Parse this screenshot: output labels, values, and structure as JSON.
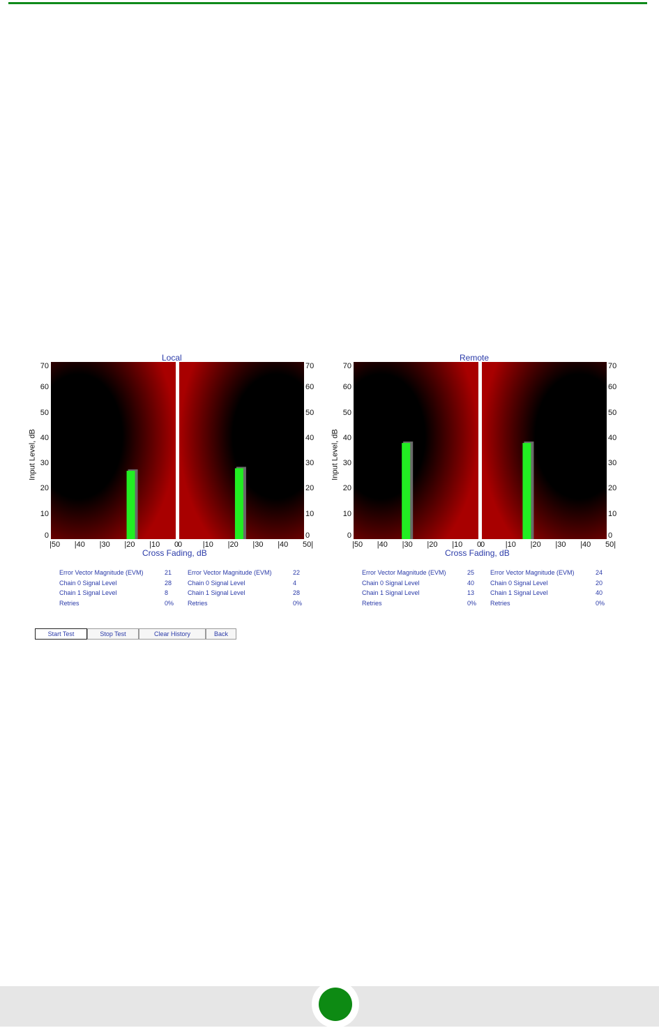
{
  "colors": {
    "top_rule": "#0f8a1a",
    "title_text": "#2a3aa8",
    "bar_green": "#22ee22",
    "bar_shadow": "#6a6a6a",
    "field_red": "#a80000",
    "field_dark": "#000000",
    "page_dot": "#0d8a13"
  },
  "panels": {
    "local": {
      "title": "Local",
      "y_axis_label": "Input Level, dB",
      "x_axis_label": "Cross Fading, dB",
      "y_ticks": [
        "70",
        "60",
        "50",
        "40",
        "30",
        "20",
        "10",
        "0"
      ],
      "left_x_ticks": [
        "|50",
        "|40",
        "|30",
        "|20",
        "|10",
        "0"
      ],
      "right_x_ticks": [
        "0",
        "|10",
        "|20",
        "|30",
        "|40",
        "50|"
      ],
      "stats_left": [
        {
          "label": "Error Vector Magnitude (EVM)",
          "value": "21"
        },
        {
          "label": "Chain 0 Signal Level",
          "value": "28"
        },
        {
          "label": "Chain 1 Signal Level",
          "value": "8"
        },
        {
          "label": "Retries",
          "value": "0%"
        }
      ],
      "stats_right": [
        {
          "label": "Error Vector Magnitude (EVM)",
          "value": "22"
        },
        {
          "label": "Chain 0 Signal Level",
          "value": "4"
        },
        {
          "label": "Chain 1 Signal Level",
          "value": "28"
        },
        {
          "label": "Retries",
          "value": "0%"
        }
      ]
    },
    "remote": {
      "title": "Remote",
      "y_axis_label": "Input Level, dB",
      "x_axis_label": "Cross Fading, dB",
      "y_ticks": [
        "70",
        "60",
        "50",
        "40",
        "30",
        "20",
        "10",
        "0"
      ],
      "left_x_ticks": [
        "|50",
        "|40",
        "|30",
        "|20",
        "|10",
        "0"
      ],
      "right_x_ticks": [
        "0",
        "|10",
        "|20",
        "|30",
        "|40",
        "50|"
      ],
      "stats_left": [
        {
          "label": "Error Vector Magnitude (EVM)",
          "value": "25"
        },
        {
          "label": "Chain 0 Signal Level",
          "value": "40"
        },
        {
          "label": "Chain 1 Signal Level",
          "value": "13"
        },
        {
          "label": "Retries",
          "value": "0%"
        }
      ],
      "stats_right": [
        {
          "label": "Error Vector Magnitude (EVM)",
          "value": "24"
        },
        {
          "label": "Chain 0 Signal Level",
          "value": "20"
        },
        {
          "label": "Chain 1 Signal Level",
          "value": "40"
        },
        {
          "label": "Retries",
          "value": "0%"
        }
      ]
    }
  },
  "buttons": {
    "start": "Start Test",
    "stop": "Stop Test",
    "clear": "Clear History",
    "back": "Back"
  },
  "chart_data": [
    {
      "type": "bar",
      "title": "Local",
      "xlabel": "Cross Fading, dB",
      "ylabel": "Input Level, dB",
      "ylim": [
        0,
        70
      ],
      "bars": [
        {
          "side": "left",
          "x": 18,
          "value": 27
        },
        {
          "side": "right",
          "x": 24,
          "value": 28
        }
      ]
    },
    {
      "type": "bar",
      "title": "Remote",
      "xlabel": "Cross Fading, dB",
      "ylabel": "Input Level, dB",
      "ylim": [
        0,
        70
      ],
      "bars": [
        {
          "side": "left",
          "x": 29,
          "value": 38
        },
        {
          "side": "right",
          "x": 18,
          "value": 38
        }
      ]
    }
  ]
}
